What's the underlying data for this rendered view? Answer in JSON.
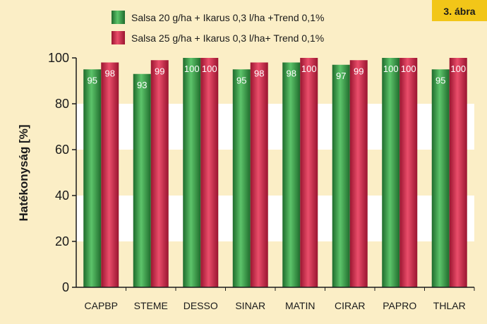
{
  "chart_data": {
    "type": "bar",
    "badge": "3. ábra",
    "ylabel": "Hatékonyság [%]",
    "xlabel": "",
    "ylim": [
      0,
      100
    ],
    "yticks": [
      0,
      20,
      40,
      60,
      80,
      100
    ],
    "categories": [
      "CAPBP",
      "STEME",
      "DESSO",
      "SINAR",
      "MATIN",
      "CIRAR",
      "PAPRO",
      "THLAR"
    ],
    "series": [
      {
        "name": "Salsa 20 g/ha + Ikarus 0,3 l/ha +Trend 0,1%",
        "color": "#2e8b3e",
        "values": [
          95,
          93,
          100,
          95,
          98,
          97,
          100,
          95
        ],
        "labels": [
          "95",
          "93",
          "100",
          "95",
          "98",
          "97",
          "100",
          "95"
        ]
      },
      {
        "name": "Salsa 25 g/ha + Ikarus 0,3 l/ha+ Trend 0,1%",
        "color": "#c8203f",
        "values": [
          98,
          99,
          100,
          98,
          100,
          99,
          100,
          100
        ],
        "labels": [
          "98",
          "99",
          "100",
          "98",
          "100",
          "99",
          "100",
          "100"
        ]
      }
    ],
    "legend_position": "top",
    "grid": "alternating horizontal bands"
  }
}
